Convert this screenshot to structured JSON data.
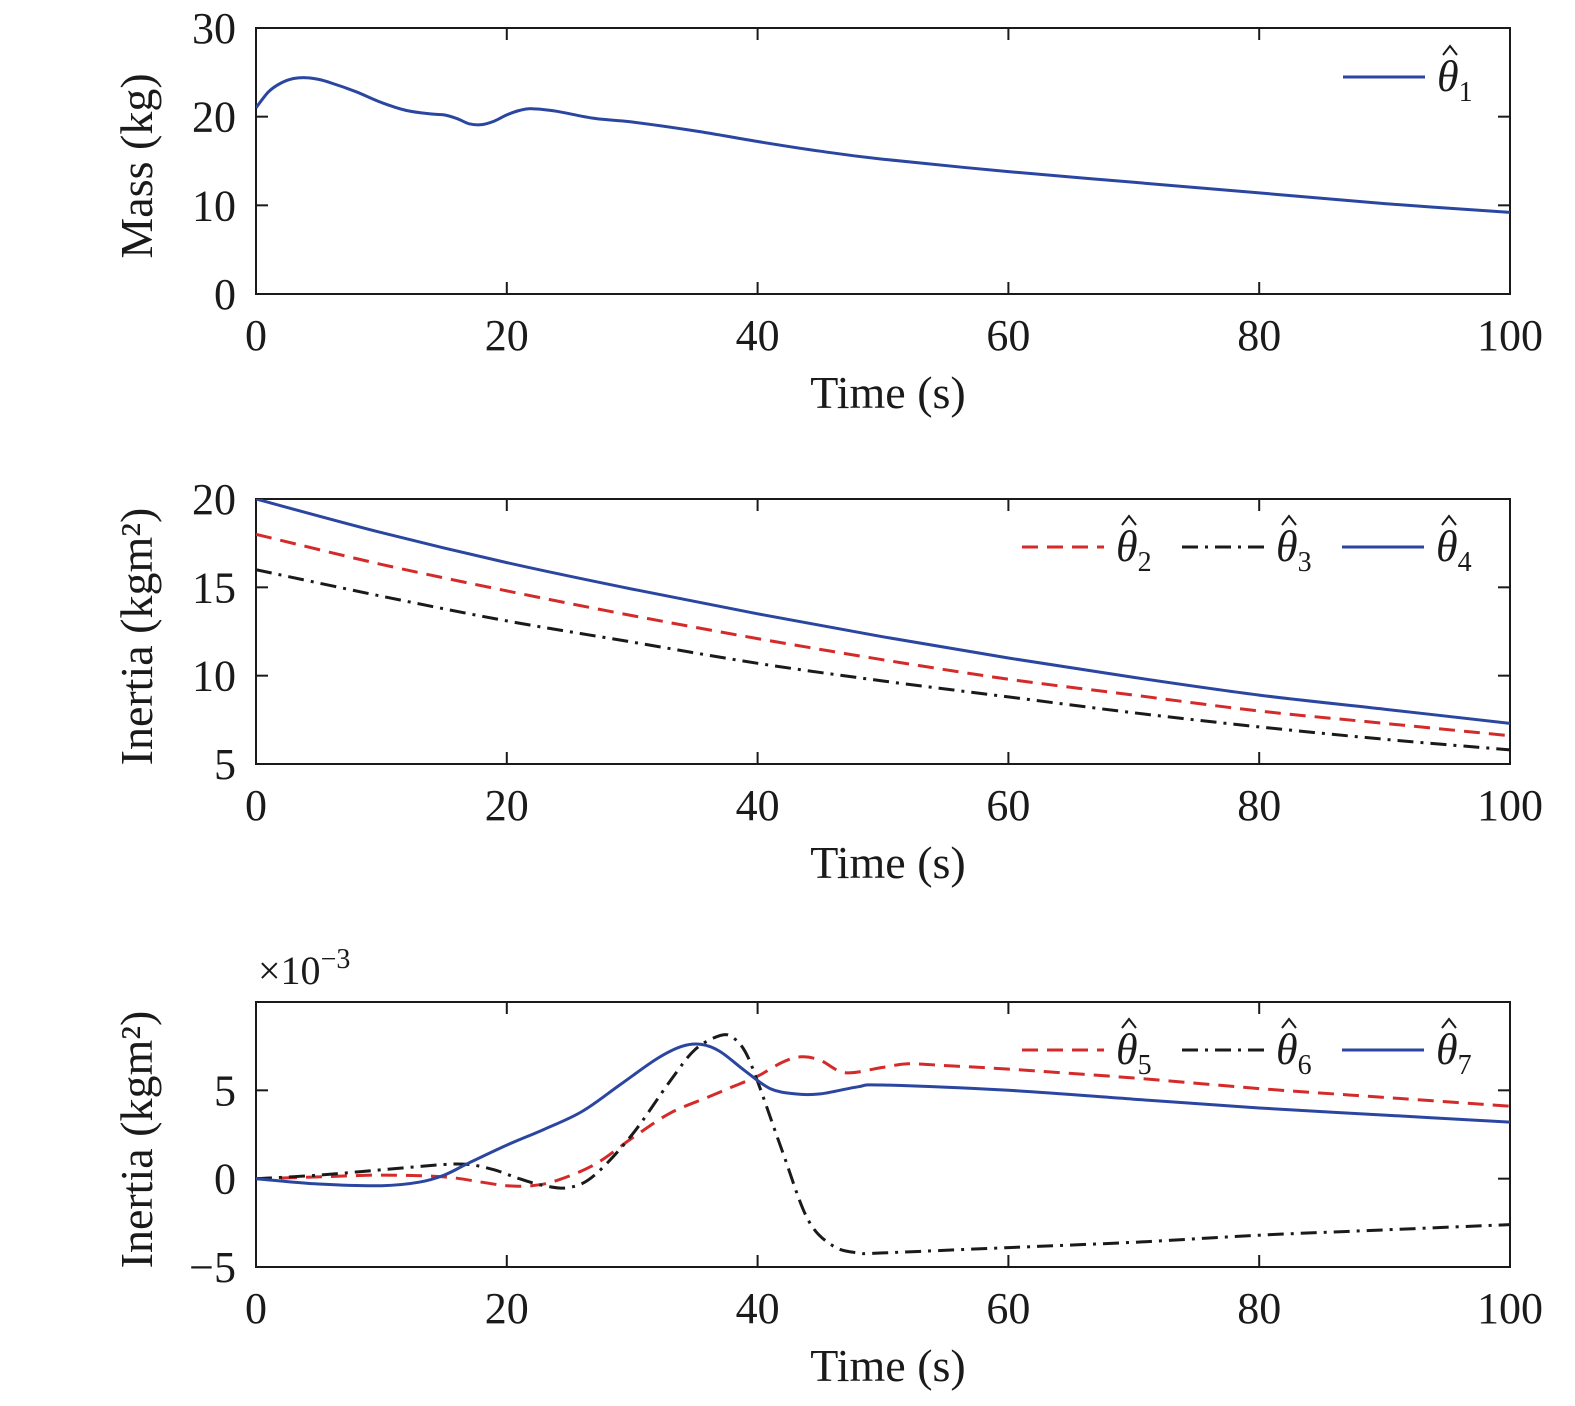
{
  "chart_data": [
    {
      "type": "line",
      "xlabel": "Time (s)",
      "ylabel": "Mass (kg)",
      "xlim": [
        0,
        100
      ],
      "ylim": [
        0,
        30
      ],
      "xticks": [
        "0",
        "20",
        "40",
        "60",
        "80",
        "100"
      ],
      "yticks": [
        "0",
        "10",
        "20",
        "30"
      ],
      "multiplier_label": "",
      "grid": false,
      "legend_position": "top-right",
      "series": [
        {
          "name": "θ̂1",
          "symbol": "θ",
          "subscript": "1",
          "color": "#2b46a0",
          "style": "solid",
          "x": [
            0,
            1,
            2,
            3,
            4,
            5,
            6,
            8,
            10,
            12,
            14,
            15,
            16,
            17,
            18,
            19,
            20,
            21,
            22,
            24,
            27,
            30,
            35,
            40,
            45,
            50,
            60,
            70,
            80,
            90,
            100
          ],
          "y": [
            21.0,
            22.8,
            23.8,
            24.3,
            24.4,
            24.2,
            23.8,
            22.8,
            21.6,
            20.7,
            20.3,
            20.2,
            19.8,
            19.2,
            19.1,
            19.5,
            20.2,
            20.7,
            20.9,
            20.6,
            19.8,
            19.4,
            18.4,
            17.2,
            16.1,
            15.2,
            13.8,
            12.6,
            11.4,
            10.2,
            9.2
          ]
        }
      ]
    },
    {
      "type": "line",
      "xlabel": "Time (s)",
      "ylabel": "Inertia (kgm²)",
      "xlim": [
        0,
        100
      ],
      "ylim": [
        5,
        20
      ],
      "xticks": [
        "0",
        "20",
        "40",
        "60",
        "80",
        "100"
      ],
      "yticks": [
        "5",
        "10",
        "15",
        "20"
      ],
      "multiplier_label": "",
      "grid": false,
      "legend_position": "top-right",
      "series": [
        {
          "name": "θ̂2",
          "symbol": "θ",
          "subscript": "2",
          "color": "#d42a2a",
          "style": "dashed",
          "x": [
            0,
            10,
            20,
            30,
            40,
            50,
            60,
            70,
            80,
            90,
            100
          ],
          "y": [
            18.0,
            16.3,
            14.8,
            13.4,
            12.1,
            10.9,
            9.8,
            8.9,
            8.0,
            7.3,
            6.6
          ]
        },
        {
          "name": "θ̂3",
          "symbol": "θ",
          "subscript": "3",
          "color": "#1a1a1a",
          "style": "dashdot",
          "x": [
            0,
            10,
            20,
            30,
            40,
            50,
            60,
            70,
            80,
            90,
            100
          ],
          "y": [
            16.0,
            14.5,
            13.1,
            11.9,
            10.7,
            9.7,
            8.8,
            7.9,
            7.1,
            6.4,
            5.8
          ]
        },
        {
          "name": "θ̂4",
          "symbol": "θ",
          "subscript": "4",
          "color": "#2b46a0",
          "style": "solid",
          "x": [
            0,
            10,
            20,
            30,
            40,
            50,
            60,
            70,
            80,
            90,
            100
          ],
          "y": [
            20.0,
            18.1,
            16.4,
            14.9,
            13.5,
            12.2,
            11.0,
            9.9,
            8.9,
            8.1,
            7.3
          ]
        }
      ]
    },
    {
      "type": "line",
      "xlabel": "Time (s)",
      "ylabel": "Inertia (kgm²)",
      "xlim": [
        0,
        100
      ],
      "ylim": [
        -5,
        10
      ],
      "xticks": [
        "0",
        "20",
        "40",
        "60",
        "80",
        "100"
      ],
      "yticks": [
        "−5",
        "0",
        "5"
      ],
      "ytick_values": [
        -5,
        0,
        5
      ],
      "multiplier_label": "×10−3",
      "multiplier_base": "×10",
      "multiplier_exp": "−3",
      "grid": false,
      "legend_position": "top-right",
      "series": [
        {
          "name": "θ̂5",
          "symbol": "θ",
          "subscript": "5",
          "color": "#d42a2a",
          "style": "dashed",
          "x": [
            0,
            5,
            10,
            15,
            18,
            20,
            22,
            24,
            27,
            30,
            33,
            36,
            38,
            40,
            42,
            43.5,
            45,
            47,
            50,
            52,
            55,
            60,
            70,
            80,
            90,
            100
          ],
          "y": [
            0,
            0.1,
            0.2,
            0.1,
            -0.2,
            -0.4,
            -0.4,
            -0.1,
            0.8,
            2.3,
            3.7,
            4.6,
            5.2,
            5.8,
            6.6,
            6.9,
            6.7,
            6.0,
            6.3,
            6.5,
            6.4,
            6.2,
            5.7,
            5.1,
            4.6,
            4.1
          ]
        },
        {
          "name": "θ̂6",
          "symbol": "θ",
          "subscript": "6",
          "color": "#1a1a1a",
          "style": "dashdot",
          "x": [
            0,
            5,
            10,
            15,
            17,
            19,
            21,
            23,
            25,
            27,
            30,
            33,
            35,
            37,
            38,
            39,
            40,
            42,
            44,
            46,
            48,
            50,
            60,
            70,
            80,
            90,
            100
          ],
          "y": [
            0,
            0.2,
            0.5,
            0.8,
            0.8,
            0.5,
            0.0,
            -0.4,
            -0.5,
            0.2,
            2.5,
            5.5,
            7.3,
            8.1,
            8.0,
            7.2,
            5.5,
            1.5,
            -2.3,
            -3.8,
            -4.2,
            -4.2,
            -3.9,
            -3.6,
            -3.2,
            -2.9,
            -2.6
          ]
        },
        {
          "name": "θ̂7",
          "symbol": "θ",
          "subscript": "7",
          "color": "#2b46a0",
          "style": "solid",
          "x": [
            0,
            5,
            10,
            13,
            15,
            17,
            20,
            23,
            26,
            29,
            32,
            34,
            35.5,
            37,
            39,
            41,
            43,
            45,
            48,
            50,
            60,
            70,
            80,
            90,
            100
          ],
          "y": [
            0,
            -0.3,
            -0.4,
            -0.2,
            0.2,
            0.9,
            1.9,
            2.8,
            3.8,
            5.3,
            6.8,
            7.5,
            7.6,
            7.2,
            6.1,
            5.1,
            4.8,
            4.8,
            5.2,
            5.3,
            5.0,
            4.5,
            4.0,
            3.6,
            3.2
          ]
        }
      ]
    }
  ]
}
